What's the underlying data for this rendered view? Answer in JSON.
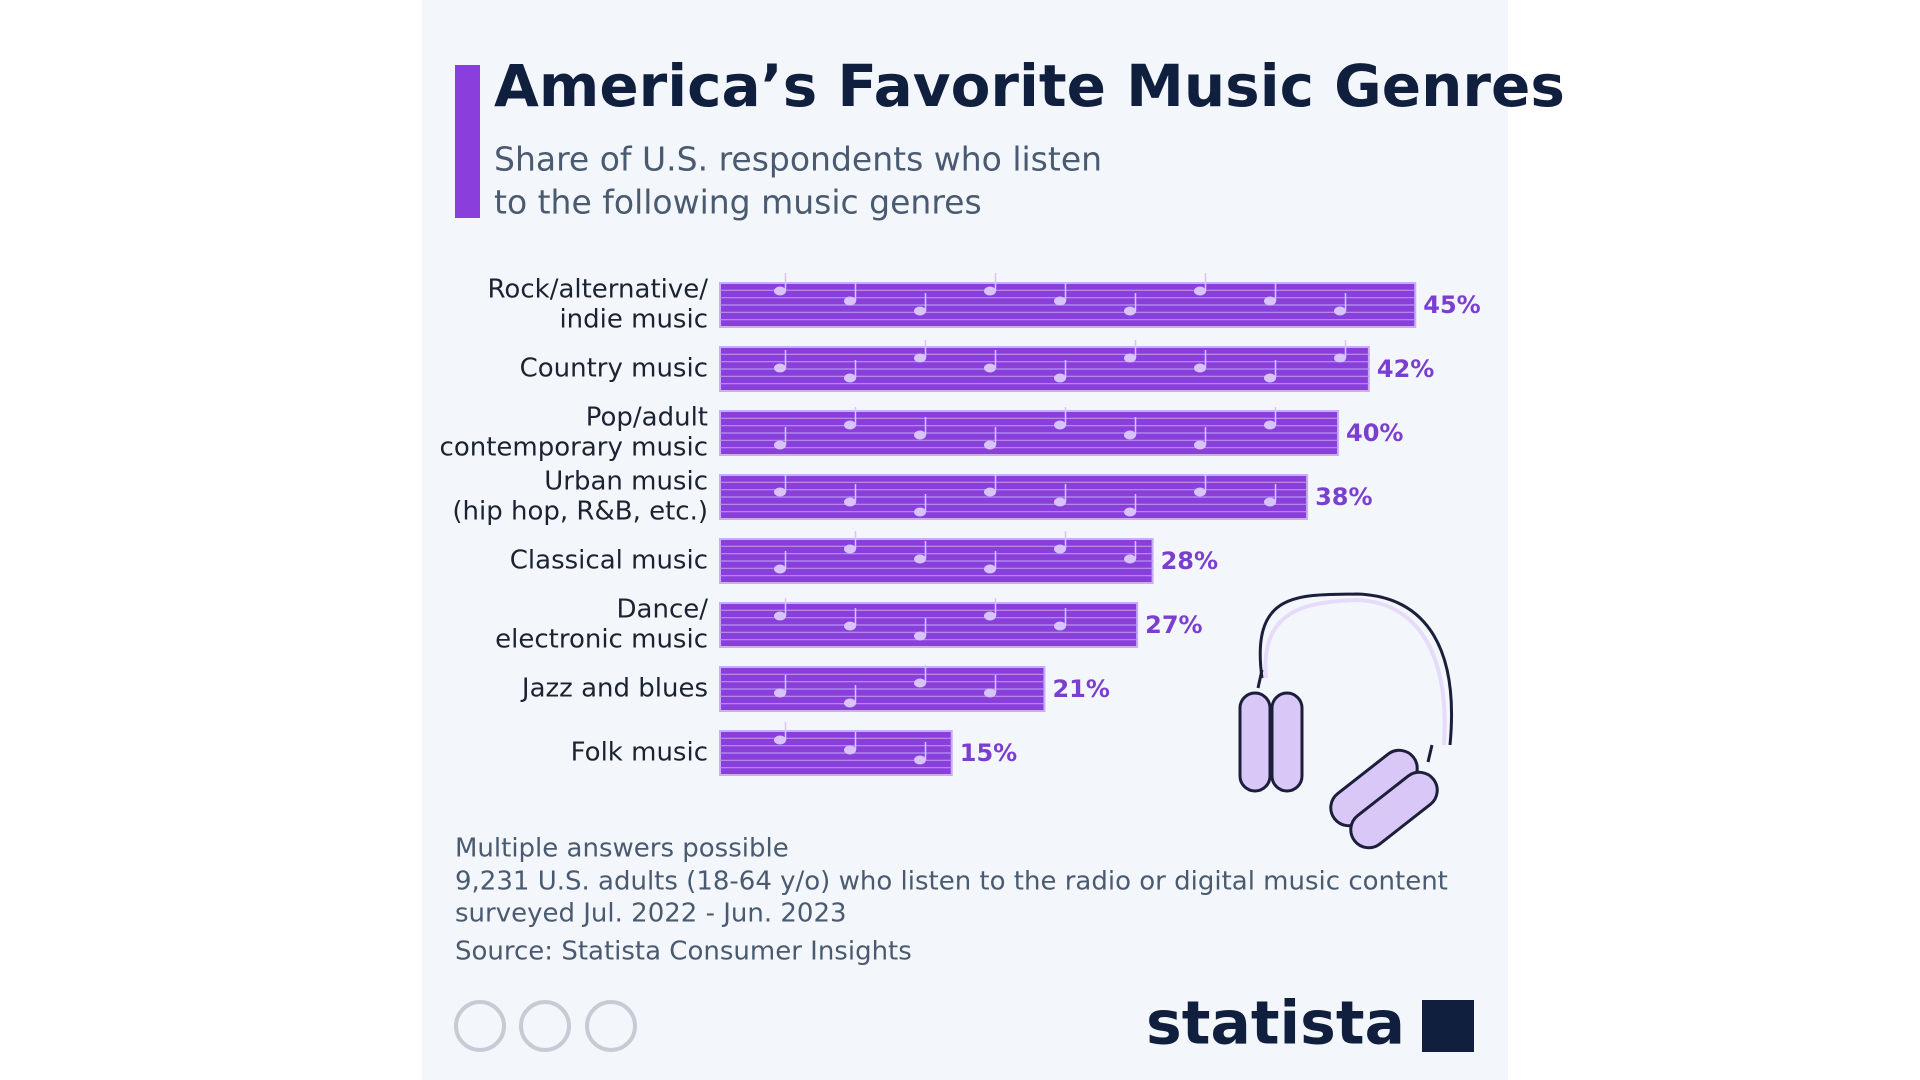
{
  "chart_data": {
    "type": "bar",
    "orientation": "horizontal",
    "title": "America’s Favorite Music Genres",
    "subtitle": [
      "Share of U.S. respondents who listen",
      "to the following music genres"
    ],
    "categories": [
      [
        "Rock/alternative/",
        "indie music"
      ],
      [
        "Country music"
      ],
      [
        "Pop/adult",
        "contemporary music"
      ],
      [
        "Urban music",
        "(hip hop, R&B, etc.)"
      ],
      [
        "Classical music"
      ],
      [
        "Dance/",
        "electronic music"
      ],
      [
        "Jazz and blues"
      ],
      [
        "Folk music"
      ]
    ],
    "values": [
      45,
      42,
      40,
      38,
      28,
      27,
      21,
      15
    ],
    "value_labels": [
      "45%",
      "42%",
      "40%",
      "38%",
      "28%",
      "27%",
      "21%",
      "15%"
    ],
    "color": "#8a3fdc",
    "notes": [
      "Multiple answers possible",
      "9,231 U.S. adults (18-64 y/o) who listen to the radio or digital music content",
      "surveyed Jul. 2022 - Jun. 2023"
    ],
    "source": "Source: Statista Consumer Insights",
    "brand": "statista"
  }
}
